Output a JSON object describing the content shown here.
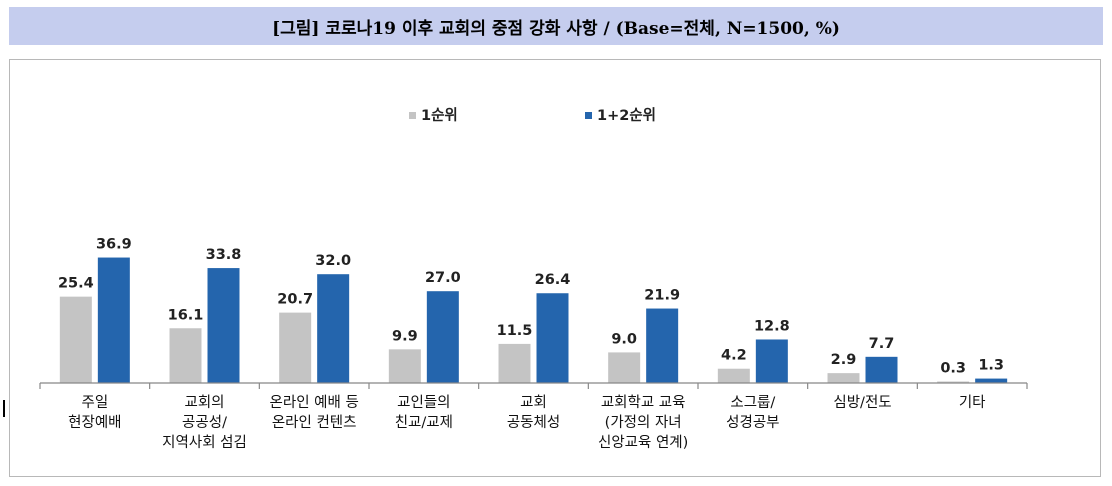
{
  "header": {
    "title": "[그림] 코로나19 이후 교회의 중점 강화 사항 / (Base=전체, N=1500, %)"
  },
  "colors": {
    "series_1": "#c4c4c4",
    "series_2": "#2465ad",
    "title_bg": "#c5cdee"
  },
  "chart_data": {
    "type": "bar",
    "title": "[그림] 코로나19 이후 교회의 중점 강화 사항 / (Base=전체, N=1500, %)",
    "categories": [
      [
        "주일",
        "현장예배"
      ],
      [
        "교회의",
        "공공성/",
        "지역사회 섬김"
      ],
      [
        "온라인 예배 등",
        "온라인 컨텐츠"
      ],
      [
        "교인들의",
        "친교/교제"
      ],
      [
        "교회",
        "공동체성"
      ],
      [
        "교회학교 교육",
        "(가정의 자녀",
        "신앙교육 연계)"
      ],
      [
        "소그룹/",
        "성경공부"
      ],
      [
        "심방/전도"
      ],
      [
        "기타"
      ]
    ],
    "series": [
      {
        "name": "1순위",
        "values": [
          25.4,
          16.1,
          20.7,
          9.9,
          11.5,
          9.0,
          4.2,
          2.9,
          0.3
        ]
      },
      {
        "name": "1+2순위",
        "values": [
          36.9,
          33.8,
          32.0,
          27.0,
          26.4,
          21.9,
          12.8,
          7.7,
          1.3
        ]
      }
    ],
    "xlabel": "",
    "ylabel": "",
    "ylim": [
      0,
      40
    ],
    "grid": false,
    "legend_position": "top-center",
    "data_labels": true
  }
}
